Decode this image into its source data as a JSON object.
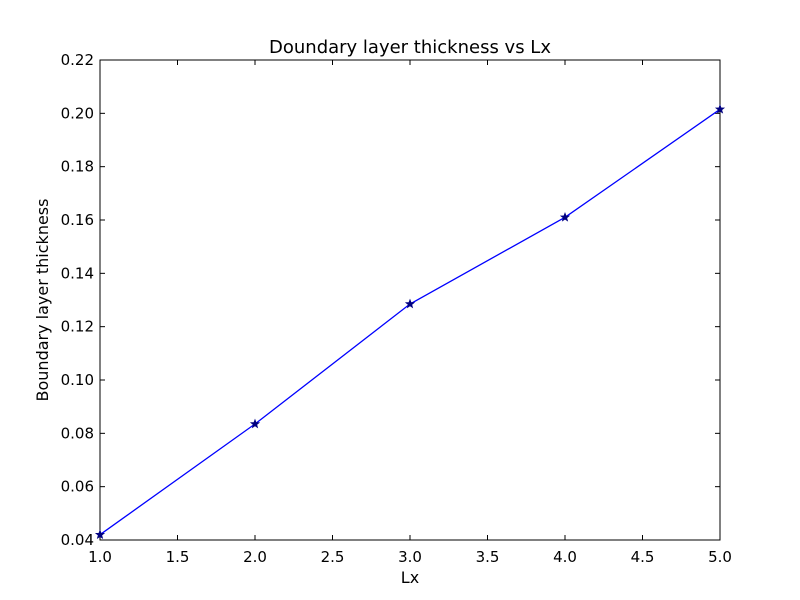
{
  "chart_data": {
    "type": "line",
    "title": "Doundary layer thickness vs Lx",
    "xlabel": "Lx",
    "ylabel": "Boundary layer thickness",
    "xlim": [
      1.0,
      5.0
    ],
    "ylim": [
      0.04,
      0.22
    ],
    "x_ticks": [
      "1.0",
      "1.5",
      "2.0",
      "2.5",
      "3.0",
      "3.5",
      "4.0",
      "4.5",
      "5.0"
    ],
    "y_ticks": [
      "0.04",
      "0.06",
      "0.08",
      "0.10",
      "0.12",
      "0.14",
      "0.16",
      "0.18",
      "0.20",
      "0.22"
    ],
    "grid": false,
    "legend": "none",
    "series": [
      {
        "x": [
          1.0,
          2.0,
          3.0,
          4.0,
          5.0
        ],
        "y": [
          0.042,
          0.0835,
          0.1285,
          0.161,
          0.2015
        ],
        "color": "#0000ff",
        "marker": "star",
        "marker_color": "#000080"
      }
    ]
  }
}
